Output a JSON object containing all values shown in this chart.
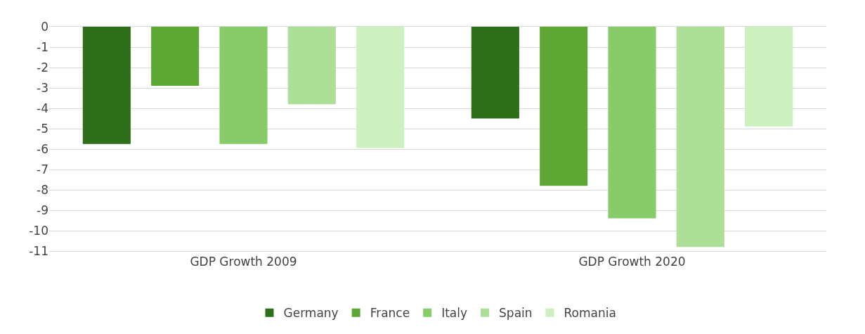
{
  "chart_data": {
    "type": "bar",
    "categories": [
      "GDP Growth 2009",
      "GDP Growth 2020"
    ],
    "series": [
      {
        "name": "Germany",
        "color": "#2f6e1b",
        "values": [
          -5.75,
          -4.5
        ]
      },
      {
        "name": "France",
        "color": "#5ea734",
        "values": [
          -2.9,
          -7.8
        ]
      },
      {
        "name": "Italy",
        "color": "#88cc6a",
        "values": [
          -5.75,
          -9.4
        ]
      },
      {
        "name": "Spain",
        "color": "#addf98",
        "values": [
          -3.8,
          -10.8
        ]
      },
      {
        "name": "Romania",
        "color": "#cdf0c0",
        "values": [
          -5.95,
          -4.9
        ]
      }
    ],
    "ylim": [
      -11,
      0
    ],
    "yticks": [
      0,
      -1,
      -2,
      -3,
      -4,
      -5,
      -6,
      -7,
      -8,
      -9,
      -10,
      -11
    ],
    "grid": "y",
    "legend": "bottom"
  }
}
